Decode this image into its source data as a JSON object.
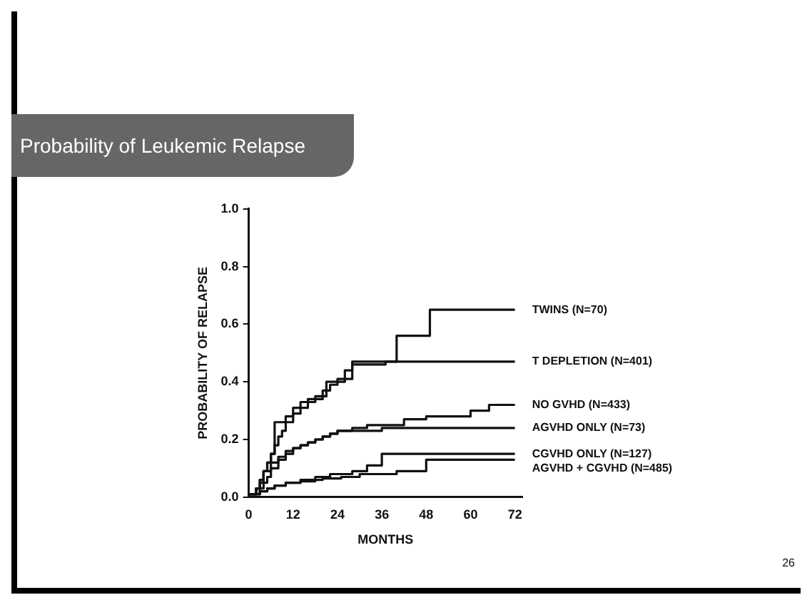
{
  "chart_data": {
    "type": "step",
    "title": "Probability of Leukemic Relapse",
    "xlabel": "MONTHS",
    "ylabel": "PROBABILITY OF RELAPSE",
    "xlim": [
      0,
      74
    ],
    "xticks": [
      0,
      12,
      24,
      36,
      48,
      60,
      72
    ],
    "ylim": [
      0,
      1
    ],
    "yticks": [
      {
        "value": 0,
        "label": "0.0"
      },
      {
        "value": 0.2,
        "label": "0.2"
      },
      {
        "value": 0.4,
        "label": "0.4"
      },
      {
        "value": 0.6,
        "label": "0.6"
      },
      {
        "value": 0.8,
        "label": "0.8"
      },
      {
        "value": 1,
        "label": "1.0"
      }
    ],
    "grid": false,
    "legend": false,
    "marker": "none",
    "line_style": "solid",
    "annotations": [
      "26"
    ],
    "series": [
      {
        "name": "TWINS (N=70)",
        "color": "#111111",
        "x": [
          0,
          2,
          3,
          4,
          5,
          6,
          7,
          8,
          10,
          11,
          12,
          14,
          16,
          18,
          20,
          21,
          23,
          24,
          26,
          28,
          30,
          37,
          40,
          49,
          68,
          72
        ],
        "values": [
          0,
          0.01,
          0.03,
          0.06,
          0.09,
          0.12,
          0.15,
          0.26,
          0.26,
          0.28,
          0.28,
          0.31,
          0.33,
          0.34,
          0.34,
          0.35,
          0.4,
          0.4,
          0.41,
          0.44,
          0.46,
          0.46,
          0.47,
          0.56,
          0.65,
          0.65
        ]
      },
      {
        "name": "T DEPLETION (N=401)",
        "color": "#111111",
        "x": [
          0,
          2,
          3,
          4,
          5,
          6,
          7,
          8,
          9,
          10,
          12,
          14,
          16,
          18,
          20,
          22,
          24,
          26,
          28,
          39,
          72
        ],
        "values": [
          0,
          0.01,
          0.03,
          0.06,
          0.09,
          0.12,
          0.15,
          0.18,
          0.21,
          0.23,
          0.26,
          0.29,
          0.31,
          0.33,
          0.35,
          0.37,
          0.39,
          0.4,
          0.41,
          0.47,
          0.47
        ]
      },
      {
        "name": "NO GVHD (N=433)",
        "color": "#111111",
        "x": [
          0,
          2,
          3,
          4,
          6,
          8,
          10,
          12,
          14,
          16,
          18,
          20,
          22,
          24,
          28,
          32,
          36,
          42,
          48,
          60,
          65,
          67,
          72
        ],
        "values": [
          0,
          0.01,
          0.03,
          0.05,
          0.09,
          0.12,
          0.14,
          0.16,
          0.17,
          0.18,
          0.19,
          0.2,
          0.21,
          0.22,
          0.23,
          0.24,
          0.25,
          0.25,
          0.27,
          0.28,
          0.3,
          0.32,
          0.32
        ]
      },
      {
        "name": "AGVHD ONLY (N=73)",
        "color": "#111111",
        "x": [
          0,
          3,
          4,
          5,
          6,
          8,
          10,
          12,
          14,
          16,
          18,
          20,
          22,
          24,
          28,
          32,
          36,
          48,
          72
        ],
        "values": [
          0,
          0.01,
          0.03,
          0.05,
          0.07,
          0.1,
          0.13,
          0.15,
          0.17,
          0.18,
          0.19,
          0.2,
          0.21,
          0.22,
          0.23,
          0.23,
          0.23,
          0.24,
          0.24
        ]
      },
      {
        "name": "CGVHD ONLY (N=127)",
        "color": "#111111",
        "x": [
          0,
          3,
          5,
          7,
          10,
          14,
          18,
          22,
          28,
          32,
          36,
          47,
          72
        ],
        "values": [
          0,
          0.01,
          0.02,
          0.03,
          0.04,
          0.05,
          0.06,
          0.07,
          0.08,
          0.09,
          0.11,
          0.15,
          0.15
        ]
      },
      {
        "name": "AGVHD + CGVHD (N=485)",
        "color": "#111111",
        "x": [
          0,
          3,
          5,
          7,
          10,
          14,
          18,
          20,
          25,
          30,
          40,
          48,
          64,
          72
        ],
        "values": [
          0,
          0.01,
          0.02,
          0.03,
          0.04,
          0.05,
          0.055,
          0.06,
          0.065,
          0.07,
          0.08,
          0.09,
          0.13,
          0.13
        ]
      }
    ]
  }
}
